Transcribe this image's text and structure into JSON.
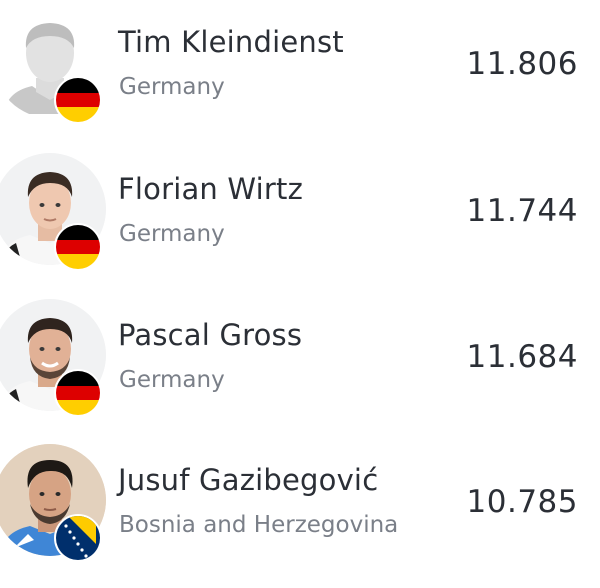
{
  "players": [
    {
      "name": "Tim Kleindienst",
      "country": "Germany",
      "value": "11.806",
      "flag": "germany-flag-icon",
      "photo": "placeholder"
    },
    {
      "name": "Florian Wirtz",
      "country": "Germany",
      "value": "11.744",
      "flag": "germany-flag-icon",
      "photo": "player-photo"
    },
    {
      "name": "Pascal Gross",
      "country": "Germany",
      "value": "11.684",
      "flag": "germany-flag-icon",
      "photo": "player-photo"
    },
    {
      "name": "Jusuf Gazibegović",
      "country": "Bosnia and Herzegovina",
      "value": "10.785",
      "flag": "bosnia-flag-icon",
      "photo": "player-photo"
    }
  ],
  "colors": {
    "text_primary": "#2b2f36",
    "text_secondary": "#7a7f88",
    "germany_black": "#000000",
    "germany_red": "#dd0000",
    "germany_gold": "#ffce00",
    "bosnia_blue": "#002f6c",
    "bosnia_yellow": "#fecb00"
  }
}
